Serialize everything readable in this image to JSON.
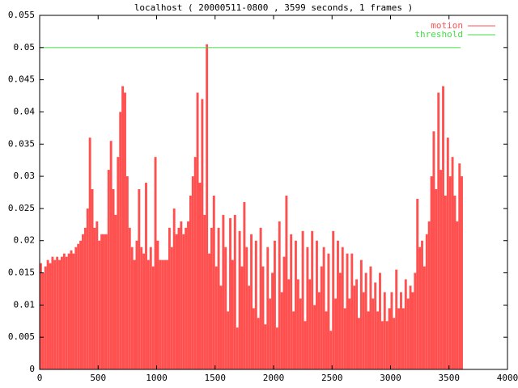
{
  "chart_data": {
    "type": "impulse",
    "title": "localhost ( 20000511-0800 , 3599 seconds, 1 frames )",
    "xlim": [
      0,
      4000
    ],
    "xticks": [
      0,
      500,
      1000,
      1500,
      2000,
      2500,
      3000,
      3500,
      4000
    ],
    "ylim": [
      0,
      0.055
    ],
    "yticks": [
      0,
      0.005,
      0.01,
      0.015,
      0.02,
      0.025,
      0.03,
      0.035,
      0.04,
      0.045,
      0.05,
      0.055
    ],
    "legend": "top-right",
    "series": [
      {
        "name": "motion",
        "color": "#ff5050",
        "x": [
          0,
          20,
          40,
          60,
          80,
          100,
          120,
          140,
          160,
          180,
          200,
          220,
          240,
          260,
          280,
          300,
          320,
          340,
          360,
          380,
          400,
          420,
          440,
          460,
          480,
          500,
          520,
          540,
          560,
          580,
          600,
          620,
          640,
          660,
          680,
          700,
          720,
          740,
          760,
          780,
          800,
          820,
          840,
          860,
          880,
          900,
          920,
          940,
          960,
          980,
          1000,
          1020,
          1040,
          1060,
          1080,
          1100,
          1120,
          1140,
          1160,
          1180,
          1200,
          1220,
          1240,
          1260,
          1280,
          1300,
          1320,
          1340,
          1360,
          1380,
          1400,
          1420,
          1440,
          1460,
          1480,
          1500,
          1520,
          1540,
          1560,
          1580,
          1600,
          1620,
          1640,
          1660,
          1680,
          1700,
          1720,
          1740,
          1760,
          1780,
          1800,
          1820,
          1840,
          1860,
          1880,
          1900,
          1920,
          1940,
          1960,
          1980,
          2000,
          2020,
          2040,
          2060,
          2080,
          2100,
          2120,
          2140,
          2160,
          2180,
          2200,
          2220,
          2240,
          2260,
          2280,
          2300,
          2320,
          2340,
          2360,
          2380,
          2400,
          2420,
          2440,
          2460,
          2480,
          2500,
          2520,
          2540,
          2560,
          2580,
          2600,
          2620,
          2640,
          2660,
          2680,
          2700,
          2720,
          2740,
          2760,
          2780,
          2800,
          2820,
          2840,
          2860,
          2880,
          2900,
          2920,
          2940,
          2960,
          2980,
          3000,
          3020,
          3040,
          3060,
          3080,
          3100,
          3120,
          3140,
          3160,
          3180,
          3200,
          3220,
          3240,
          3260,
          3280,
          3300,
          3320,
          3340,
          3360,
          3380,
          3400,
          3420,
          3440,
          3460,
          3480,
          3500,
          3520,
          3540,
          3560,
          3580,
          3599
        ],
        "values": [
          0.0165,
          0.015,
          0.016,
          0.017,
          0.0165,
          0.0175,
          0.017,
          0.0175,
          0.017,
          0.0175,
          0.018,
          0.0175,
          0.018,
          0.0185,
          0.018,
          0.019,
          0.0195,
          0.02,
          0.021,
          0.022,
          0.025,
          0.036,
          0.028,
          0.022,
          0.023,
          0.02,
          0.021,
          0.021,
          0.021,
          0.031,
          0.0355,
          0.028,
          0.024,
          0.033,
          0.04,
          0.044,
          0.043,
          0.03,
          0.022,
          0.019,
          0.017,
          0.02,
          0.028,
          0.019,
          0.018,
          0.029,
          0.017,
          0.019,
          0.016,
          0.033,
          0.02,
          0.017,
          0.017,
          0.017,
          0.017,
          0.022,
          0.019,
          0.025,
          0.021,
          0.022,
          0.023,
          0.021,
          0.022,
          0.023,
          0.027,
          0.03,
          0.033,
          0.043,
          0.029,
          0.042,
          0.024,
          0.0505,
          0.018,
          0.022,
          0.027,
          0.016,
          0.022,
          0.013,
          0.024,
          0.019,
          0.009,
          0.0235,
          0.017,
          0.024,
          0.0065,
          0.0215,
          0.016,
          0.026,
          0.019,
          0.013,
          0.021,
          0.0095,
          0.02,
          0.008,
          0.022,
          0.016,
          0.007,
          0.019,
          0.011,
          0.015,
          0.02,
          0.0065,
          0.023,
          0.012,
          0.0175,
          0.027,
          0.014,
          0.021,
          0.009,
          0.02,
          0.014,
          0.011,
          0.0215,
          0.0075,
          0.019,
          0.014,
          0.0215,
          0.01,
          0.02,
          0.012,
          0.016,
          0.019,
          0.009,
          0.018,
          0.006,
          0.0215,
          0.011,
          0.02,
          0.015,
          0.019,
          0.0095,
          0.018,
          0.011,
          0.018,
          0.013,
          0.014,
          0.008,
          0.017,
          0.012,
          0.015,
          0.009,
          0.016,
          0.011,
          0.0135,
          0.009,
          0.015,
          0.0075,
          0.012,
          0.0075,
          0.0095,
          0.012,
          0.008,
          0.0155,
          0.0095,
          0.012,
          0.0095,
          0.014,
          0.011,
          0.013,
          0.012,
          0.015,
          0.0265,
          0.019,
          0.02,
          0.016,
          0.021,
          0.023,
          0.03,
          0.037,
          0.028,
          0.043,
          0.031,
          0.044,
          0.027,
          0.036,
          0.03,
          0.033,
          0.027,
          0.023,
          0.032,
          0.03
        ]
      },
      {
        "name": "threshold",
        "color": "#44dd44",
        "x": [
          0,
          3599
        ],
        "values": [
          0.05,
          0.05
        ]
      }
    ]
  }
}
